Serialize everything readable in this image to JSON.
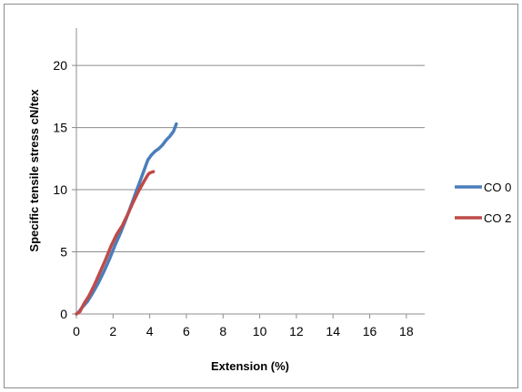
{
  "chart_data": {
    "type": "line",
    "title": "",
    "xlabel": "Extension (%)",
    "ylabel": "Specific tensile stress cN/tex",
    "xlim": [
      0,
      19
    ],
    "ylim": [
      0,
      23
    ],
    "x_ticks": [
      "0",
      "2",
      "4",
      "6",
      "8",
      "10",
      "12",
      "14",
      "16",
      "18"
    ],
    "y_ticks": [
      "0",
      "5",
      "10",
      "15",
      "20"
    ],
    "grid": "horizontal",
    "legend_position": "right",
    "series": [
      {
        "name": "CO 0",
        "color": "#4a7ebb",
        "x": [
          0.1,
          0.3,
          0.6,
          0.9,
          1.2,
          1.5,
          1.8,
          2.1,
          2.4,
          2.7,
          3.0,
          3.3,
          3.5,
          3.7,
          3.9,
          4.1,
          4.3,
          4.5,
          4.7,
          4.9,
          5.1,
          5.3,
          5.45
        ],
        "y": [
          0.1,
          0.5,
          1.0,
          1.7,
          2.5,
          3.4,
          4.4,
          5.5,
          6.5,
          7.6,
          8.8,
          10.0,
          10.8,
          11.6,
          12.4,
          12.8,
          13.1,
          13.3,
          13.6,
          14.0,
          14.3,
          14.7,
          15.3
        ]
      },
      {
        "name": "CO 2",
        "color": "#be4b48",
        "x": [
          0.0,
          0.2,
          0.4,
          0.7,
          1.0,
          1.3,
          1.6,
          1.9,
          2.2,
          2.5,
          2.8,
          3.1,
          3.4,
          3.7,
          3.9,
          4.0,
          4.1,
          4.2
        ],
        "y": [
          0.0,
          0.2,
          0.8,
          1.5,
          2.4,
          3.4,
          4.4,
          5.5,
          6.4,
          7.1,
          8.0,
          9.0,
          9.9,
          10.7,
          11.2,
          11.35,
          11.4,
          11.45
        ]
      }
    ]
  }
}
